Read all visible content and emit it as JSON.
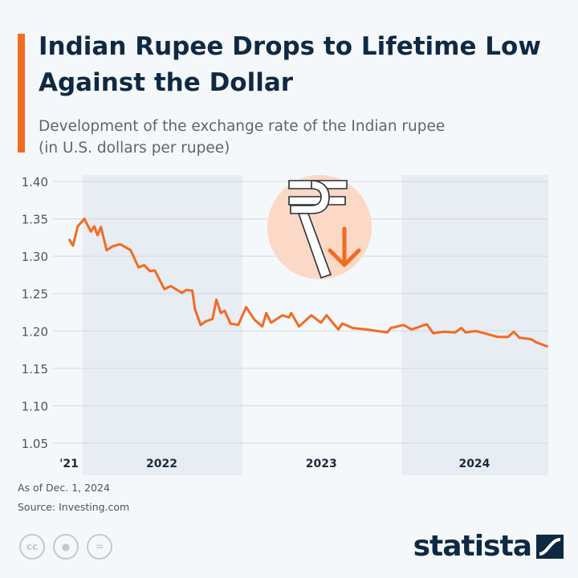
{
  "header": {
    "title": "Indian Rupee Drops to Lifetime Low Against the Dollar",
    "subtitle_line1": "Development of the exchange rate of the Indian rupee",
    "subtitle_line2": "(in U.S. dollars per rupee)"
  },
  "colors": {
    "accent": "#f26b21",
    "title": "#0f2942",
    "band": "#e8edf3",
    "icon_circle": "#fcd9c6"
  },
  "icon": "rupee-down-icon",
  "chart_data": {
    "type": "line",
    "title": "Indian Rupee Drops to Lifetime Low Against the Dollar",
    "ylim": [
      1.05,
      1.4
    ],
    "yticks": [
      "1.40",
      "1.35",
      "1.30",
      "1.25",
      "1.20",
      "1.15",
      "1.10",
      "1.05"
    ],
    "xlim": [
      "2021-12-01",
      "2024-12-01"
    ],
    "xtick_labels": [
      "'21",
      "2022",
      "2023",
      "2024"
    ],
    "grid": true,
    "series": [
      {
        "x": [
          "2021-12-01",
          "2021-12-10",
          "2021-12-21",
          "2022-01-05",
          "2022-01-20",
          "2022-01-28",
          "2022-02-04",
          "2022-02-12",
          "2022-02-25",
          "2022-03-10",
          "2022-03-28",
          "2022-04-21",
          "2022-05-09",
          "2022-05-22",
          "2022-06-04",
          "2022-06-15",
          "2022-07-07",
          "2022-07-22",
          "2022-08-16",
          "2022-08-27",
          "2022-09-09",
          "2022-09-15",
          "2022-09-28",
          "2022-10-10",
          "2022-10-25",
          "2022-11-03",
          "2022-11-13",
          "2022-11-22",
          "2022-12-05",
          "2022-12-23",
          "2023-01-10",
          "2023-01-29",
          "2023-02-16",
          "2023-02-25",
          "2023-03-08",
          "2023-04-03",
          "2023-04-18",
          "2023-04-23",
          "2023-05-11",
          "2023-06-08",
          "2023-06-30",
          "2023-07-13",
          "2023-08-09",
          "2023-08-18",
          "2023-09-11",
          "2023-10-12",
          "2023-11-29",
          "2023-12-07",
          "2024-01-05",
          "2024-01-23",
          "2024-02-27",
          "2024-03-13",
          "2024-04-06",
          "2024-05-02",
          "2024-05-16",
          "2024-05-26",
          "2024-06-18",
          "2024-07-14",
          "2024-08-07",
          "2024-08-31",
          "2024-09-13",
          "2024-09-26",
          "2024-10-23",
          "2024-11-03",
          "2024-11-30"
        ],
        "y": [
          1.323,
          1.314,
          1.34,
          1.35,
          1.333,
          1.34,
          1.328,
          1.339,
          1.308,
          1.313,
          1.316,
          1.308,
          1.285,
          1.288,
          1.28,
          1.281,
          1.256,
          1.26,
          1.251,
          1.255,
          1.254,
          1.229,
          1.208,
          1.213,
          1.216,
          1.242,
          1.224,
          1.227,
          1.21,
          1.208,
          1.232,
          1.215,
          1.206,
          1.224,
          1.211,
          1.221,
          1.218,
          1.224,
          1.206,
          1.221,
          1.211,
          1.221,
          1.202,
          1.21,
          1.204,
          1.202,
          1.198,
          1.204,
          1.208,
          1.202,
          1.209,
          1.197,
          1.199,
          1.198,
          1.204,
          1.198,
          1.2,
          1.196,
          1.192,
          1.192,
          1.199,
          1.191,
          1.189,
          1.185,
          1.179
        ]
      }
    ]
  },
  "footer": {
    "date_note": "As of Dec. 1, 2024",
    "source": "Source: Investing.com",
    "license_icons": [
      "cc-icon",
      "attribution-icon",
      "no-derivatives-icon"
    ],
    "logo": "statista"
  }
}
